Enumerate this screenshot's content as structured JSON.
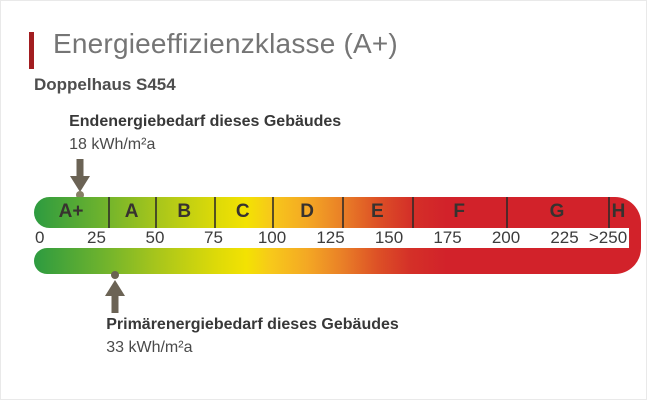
{
  "header": {
    "title": "Energieeffizienzklasse (A+)",
    "subtitle": "Doppelhaus S454",
    "accent_color": "#a21d20"
  },
  "chart_data": {
    "type": "energy-efficiency-scale",
    "title": "Energieeffizienzklasse (A+)",
    "subtitle": "Doppelhaus S454",
    "result_class": "A+",
    "unit": "kWh/m²a",
    "axis": {
      "ticks": [
        "0",
        "25",
        "50",
        "75",
        "100",
        "125",
        "150",
        "175",
        "200",
        "225",
        ">250"
      ],
      "tick_values": [
        0,
        25,
        50,
        75,
        100,
        125,
        150,
        175,
        200,
        225,
        250
      ],
      "range": [
        0,
        250
      ]
    },
    "classes": [
      {
        "label": "A+",
        "from": 0,
        "to": 30
      },
      {
        "label": "A",
        "from": 30,
        "to": 50
      },
      {
        "label": "B",
        "from": 50,
        "to": 75
      },
      {
        "label": "C",
        "from": 75,
        "to": 100
      },
      {
        "label": "D",
        "from": 100,
        "to": 130
      },
      {
        "label": "E",
        "from": 130,
        "to": 160
      },
      {
        "label": "F",
        "from": 160,
        "to": 200
      },
      {
        "label": "G",
        "from": 200,
        "to": 250
      },
      {
        "label": "H",
        "from": 250,
        "to": null
      }
    ],
    "gradient_colors": [
      "#2d9b40",
      "#72b42c",
      "#a6c51c",
      "#ddda08",
      "#f3e202",
      "#f7c91a",
      "#f4a824",
      "#e97e27",
      "#dd5126",
      "#d43028",
      "#d2222a"
    ],
    "markers": [
      {
        "name": "endenergiebedarf",
        "label": "Endenergiebedarf dieses Gebäudes",
        "value": 18,
        "value_text": "18 kWh/m²a",
        "position": "top"
      },
      {
        "name": "primaerenergiebedarf",
        "label": "Primärenergiebedarf dieses Gebäudes",
        "value": 33,
        "value_text": "33 kWh/m²a",
        "position": "bottom"
      }
    ]
  }
}
